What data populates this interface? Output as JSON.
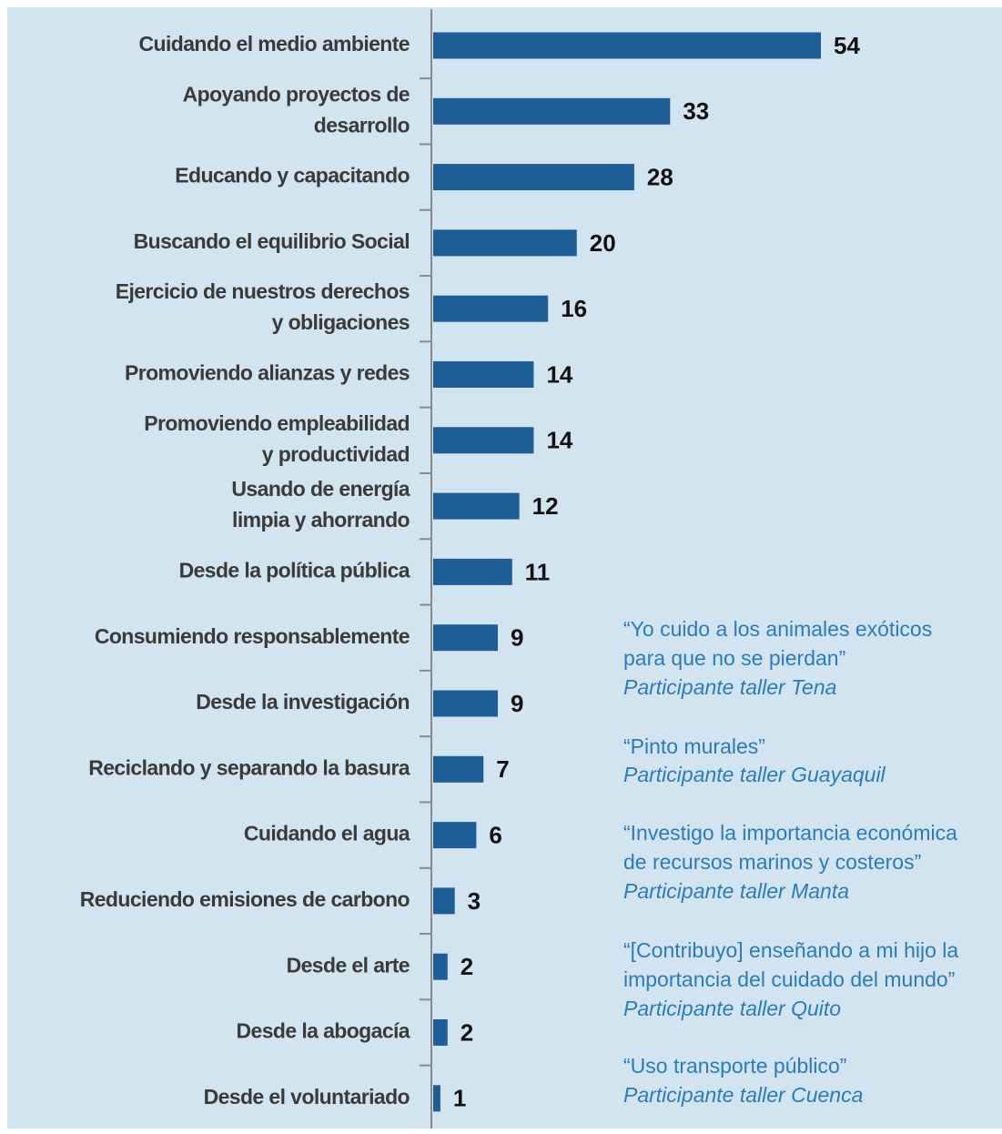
{
  "chart_data": {
    "type": "barh",
    "categories": [
      "Cuidando el medio ambiente",
      "Apoyando proyectos de\ndesarrollo",
      "Educando y capacitando",
      "Buscando el equilibrio Social",
      "Ejercicio de nuestros derechos\ny obligaciones",
      "Promoviendo alianzas y redes",
      "Promoviendo empleabilidad\ny productividad",
      "Usando de energía\nlimpia y ahorrando",
      "Desde la política pública",
      "Consumiendo responsablemente",
      "Desde la investigación",
      "Reciclando y separando la basura",
      "Cuidando el agua",
      "Reduciendo emisiones de carbono",
      "Desde el arte",
      "Desde la abogacía",
      "Desde el voluntariado"
    ],
    "values": [
      54,
      33,
      28,
      20,
      16,
      14,
      14,
      12,
      11,
      9,
      9,
      7,
      6,
      3,
      2,
      2,
      1
    ],
    "color": "#1d5e97",
    "annotations": [
      {
        "quote": "“Yo cuido a los animales exóticos\npara que no se pierdan”",
        "source": "Participante taller Tena"
      },
      {
        "quote": "“Pinto murales”",
        "source": "Participante taller Guayaquil"
      },
      {
        "quote": "“Investigo la importancia económica\nde recursos marinos y costeros”",
        "source": "Participante taller Manta"
      },
      {
        "quote": "“[Contribuyo] enseñando a mi hijo la\nimportancia del cuidado del mundo”",
        "source": "Participante taller Quito"
      },
      {
        "quote": "“Uso transporte público”",
        "source": "Participante taller Cuenca"
      }
    ]
  }
}
